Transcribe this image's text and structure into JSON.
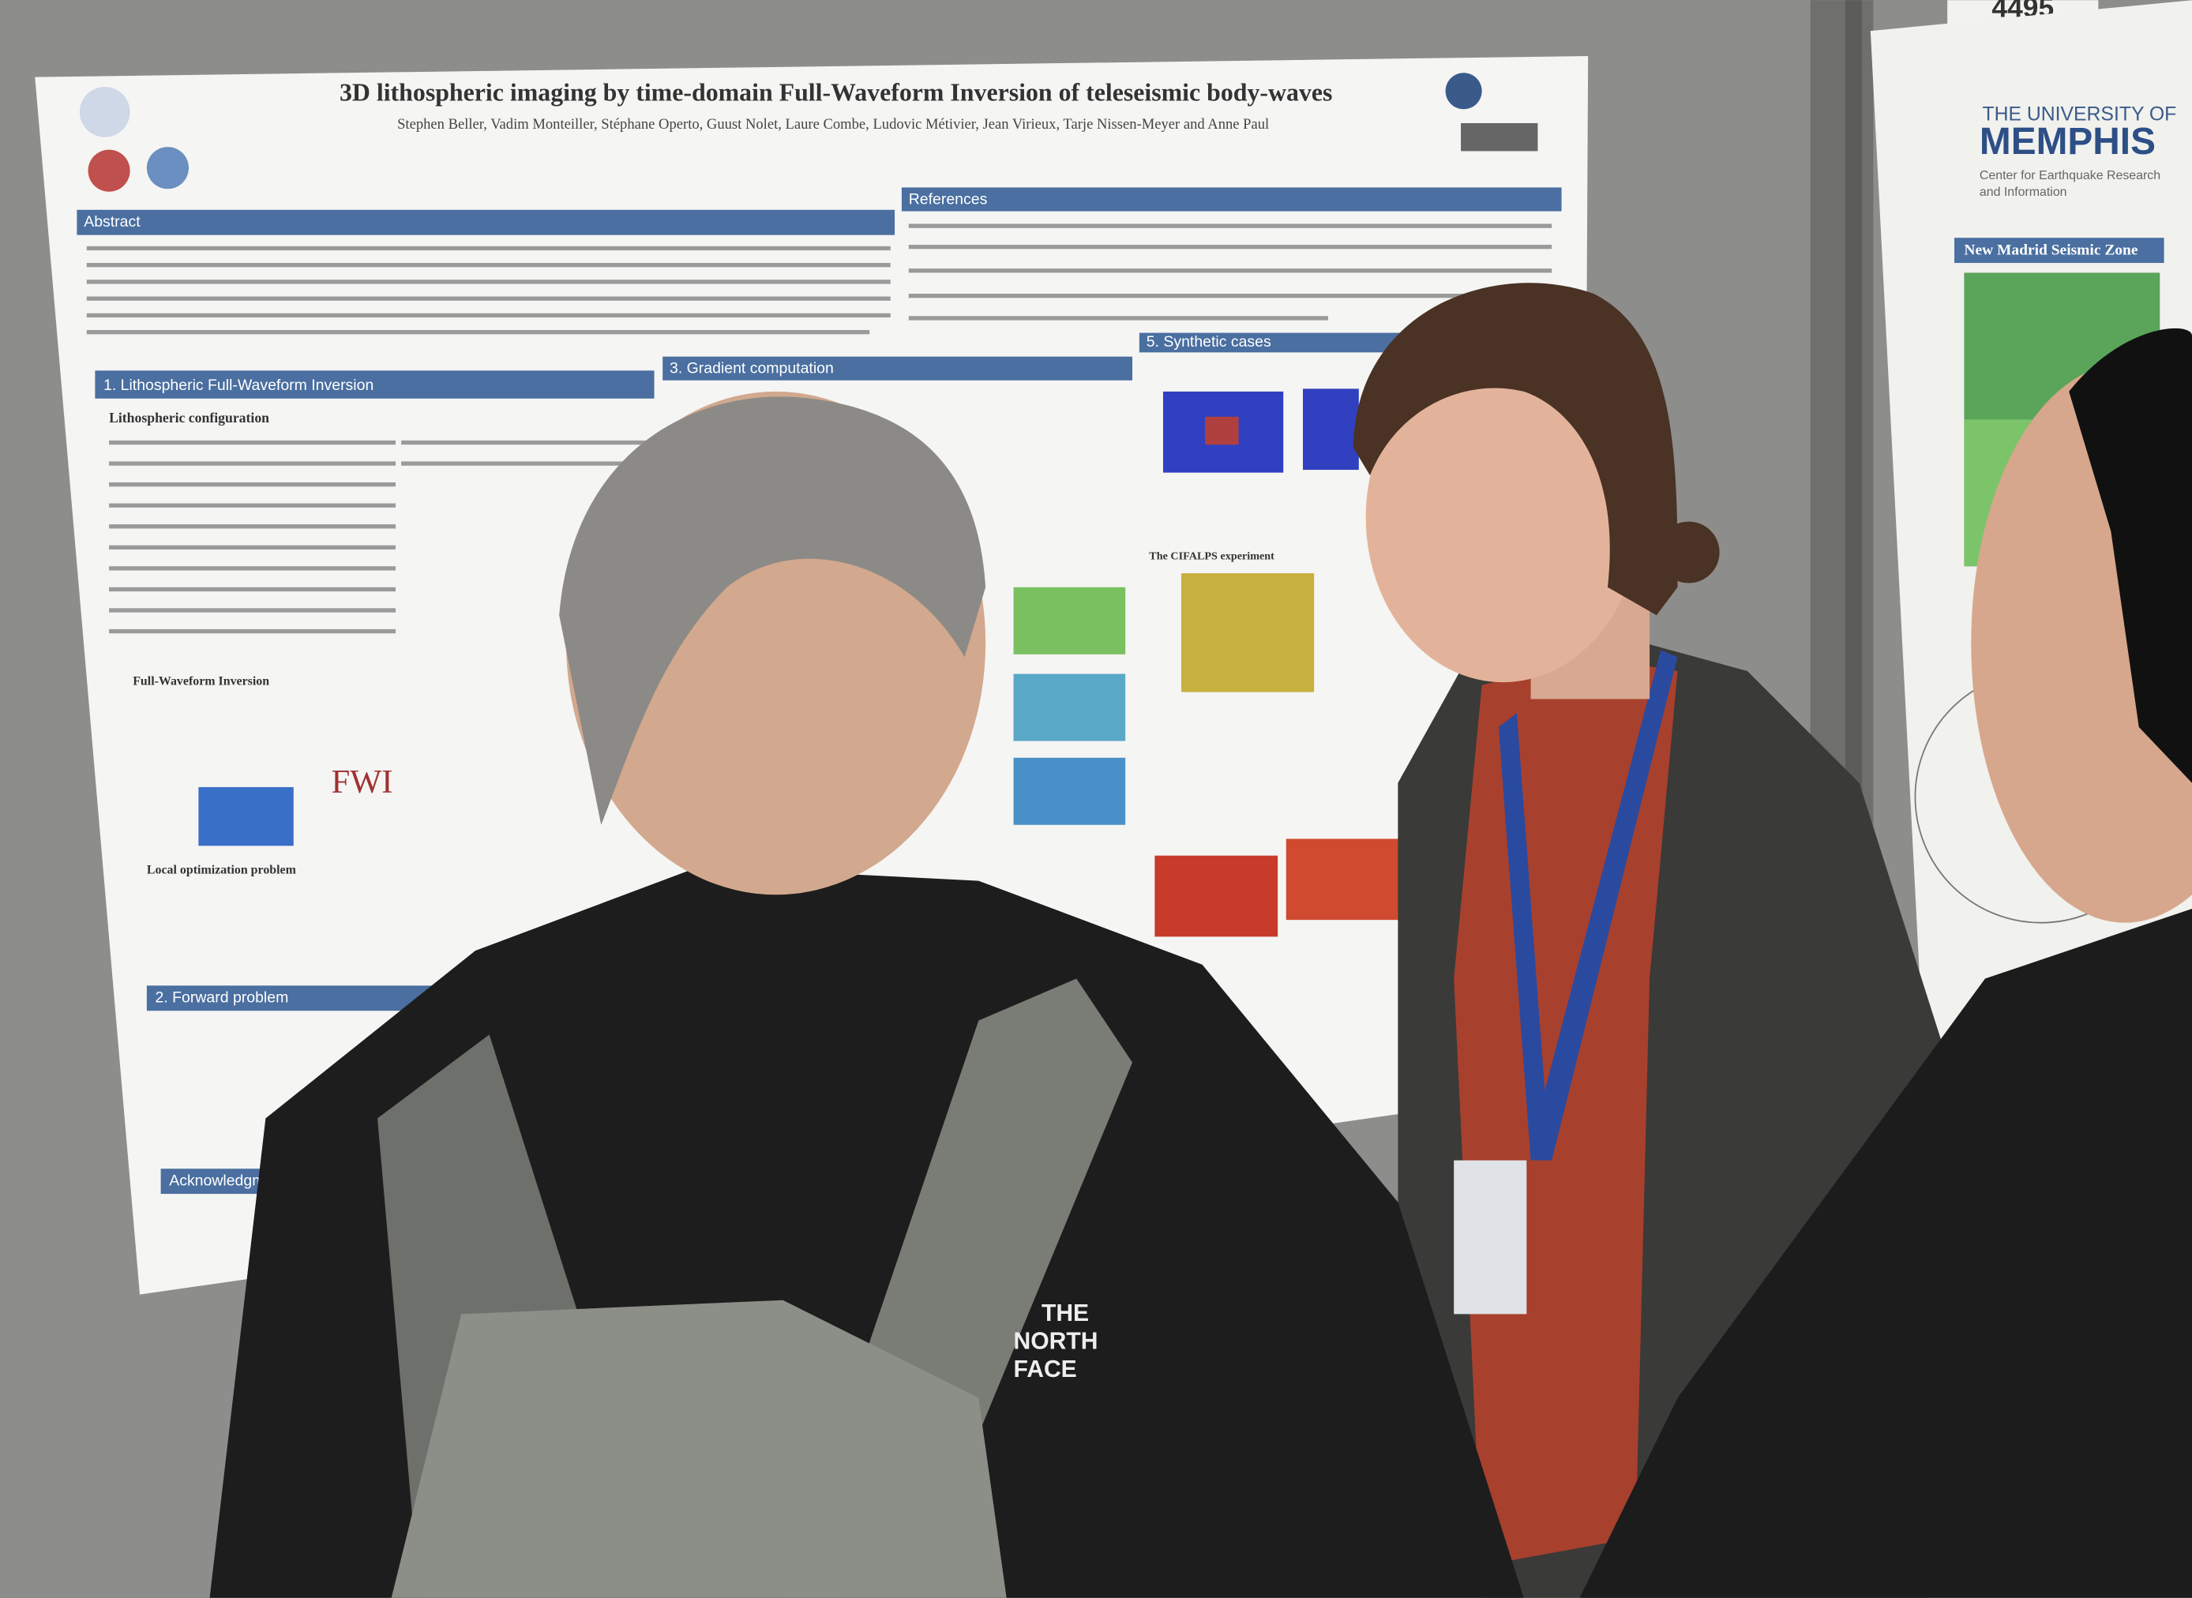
{
  "sign": {
    "number": "4495"
  },
  "poster": {
    "title": "3D lithospheric imaging by time-domain Full-Waveform Inversion of teleseismic body-waves",
    "authors": "Stephen Beller, Vadim Monteiller, Stéphane Operto, Guust Nolet, Laure Combe, Ludovic Métivier, Jean Virieux, Tarje Nissen-Meyer and Anne Paul",
    "sections": [
      "Abstract",
      "References",
      "1. Lithospheric Full-Waveform Inversion",
      "3. Gradient computation",
      "5. Synthetic cases",
      "2. Forward problem",
      "Acknowledgments"
    ],
    "figure_label": "FWI",
    "subheads": [
      "Lithospheric configuration",
      "Full-Waveform Inversion",
      "Local optimization problem",
      "The CIFALPS experiment"
    ]
  },
  "right_poster": {
    "university_line1": "THE UNIVERSITY OF",
    "university_line2": "MEMPHIS",
    "center_line1": "Center for Earthquake Research",
    "center_line2": "and Information",
    "map_title": "New Madrid Seismic Zone"
  },
  "jacket_logo": {
    "line1": "THE",
    "line2": "NORTH",
    "line3": "FACE"
  }
}
